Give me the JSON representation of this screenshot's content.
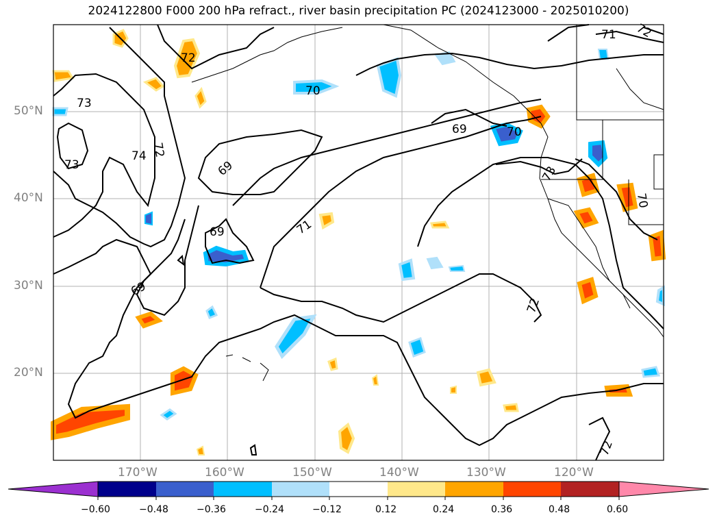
{
  "title": "2024122800 F000 200 hPa refract., river basin precipitation PC (2024123000 - 2025010200)",
  "lat_labels": [
    "50°N",
    "40°N",
    "30°N",
    "20°N"
  ],
  "lon_labels": [
    "170°W",
    "160°W",
    "150°W",
    "140°W",
    "130°W",
    "120°W"
  ],
  "contour_labels": [
    "73",
    "74",
    "72",
    "73",
    "72",
    "70",
    "69",
    "69",
    "70",
    "71",
    "69",
    "69",
    "72",
    "71",
    "72",
    "73",
    "70",
    "72"
  ],
  "colorbar": {
    "ticks": [
      "−0.60",
      "−0.48",
      "−0.36",
      "−0.24",
      "−0.12",
      "0.12",
      "0.24",
      "0.36",
      "0.48",
      "0.60"
    ],
    "colors": [
      "#9b30d0",
      "#00008b",
      "#3a5fcd",
      "#00bfff",
      "#b0e0fa",
      "#ffffff",
      "#ffe88a",
      "#ffa500",
      "#ff4500",
      "#b22222",
      "#ff88aa"
    ]
  },
  "palette": {
    "land_border": "#000000",
    "grid": "#b0b0b0"
  }
}
